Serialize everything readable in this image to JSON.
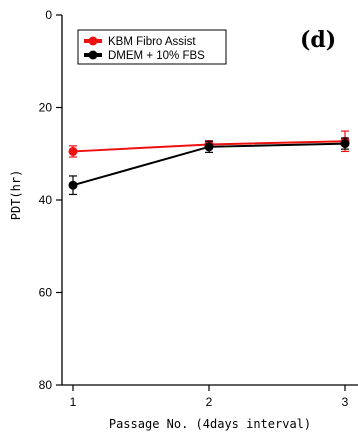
{
  "chart_data": {
    "type": "line",
    "panel_label": "(d)",
    "xlabel": "Passage No. (4days interval)",
    "ylabel": "PDT(hr)",
    "x": [
      1,
      2,
      3
    ],
    "x_ticks": [
      "1",
      "2",
      "3"
    ],
    "ylim": [
      0,
      80
    ],
    "y_inverted": true,
    "y_ticks": [
      "0",
      "20",
      "40",
      "60",
      "80"
    ],
    "grid": false,
    "legend_position": "top-left",
    "series": [
      {
        "name": "KBM Fibro Assist",
        "color": "#ee1111",
        "values": [
          29.5,
          28.0,
          27.3
        ],
        "errors": [
          1.2,
          0.8,
          2.2
        ]
      },
      {
        "name": "DMEM + 10% FBS",
        "color": "#000000",
        "values": [
          36.8,
          28.5,
          27.8
        ],
        "errors": [
          2.0,
          1.2,
          1.2
        ]
      }
    ]
  }
}
